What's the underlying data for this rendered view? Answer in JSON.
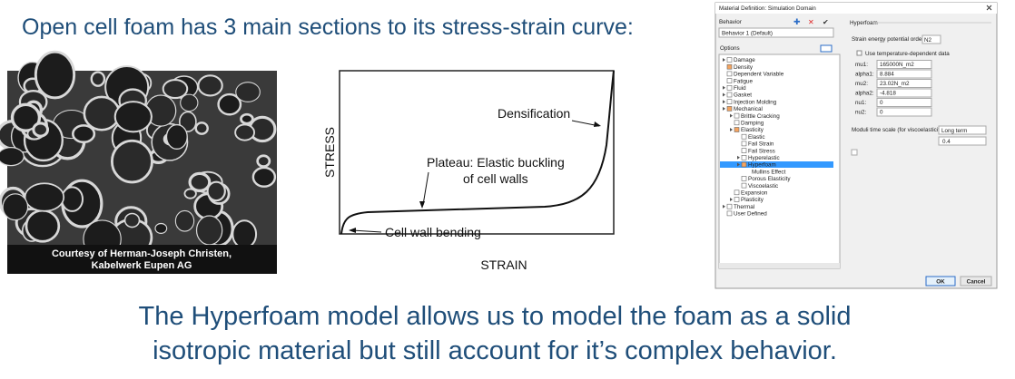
{
  "header": {
    "title": "Open cell foam has 3 main sections to its stress-strain curve:"
  },
  "photo": {
    "caption": [
      "Courtesy of Herman-Joseph Christen,",
      "Kabelwerk Eupen AG"
    ]
  },
  "diagram": {
    "y_label": "STRESS",
    "x_label": "STRAIN",
    "annotations": [
      "Densification",
      "Plateau: Elastic buckling",
      "of cell walls",
      "Cell wall bending"
    ]
  },
  "dialog": {
    "title": "Material Definition: Simulation Domain",
    "behavior_label": "Behavior",
    "behavior_value": "Behavior 1 (Default)",
    "options_label": "Options",
    "tree": [
      "Damage",
      "Density",
      "Dependent Variable",
      "Fatigue",
      "Fluid",
      "Gasket",
      "Injection Molding",
      "Mechanical",
      "Brittle Cracking",
      "Damping",
      "Elasticity",
      "Elastic",
      "Fail Strain",
      "Fail Stress",
      "Hyperelastic",
      "Hyperfoam",
      "Mullins Effect",
      "Porous Elasticity",
      "Viscoelastic",
      "Expansion",
      "Plasticity",
      "Thermal",
      "User Defined"
    ],
    "group": "Hyperfoam",
    "order_label": "Strain energy potential order:",
    "order_value": "N2",
    "temp_label": "Use temperature-dependent data",
    "fields": [
      {
        "label": "mu1:",
        "value": "165000N_m2"
      },
      {
        "label": "alpha1:",
        "value": "8.884"
      },
      {
        "label": "mu2:",
        "value": "23.02N_m2"
      },
      {
        "label": "alpha2:",
        "value": "-4.818"
      },
      {
        "label": "nu1:",
        "value": "0"
      },
      {
        "label": "nu2:",
        "value": "0"
      }
    ],
    "moduli_label": "Moduli time scale (for viscoelasticity):",
    "moduli_value": "Long term",
    "moduli_field": "0.4",
    "ok": "OK",
    "cancel": "Cancel"
  },
  "footer": {
    "lines": [
      "The Hyperfoam model allows us to model the foam as a solid",
      "isotropic material but still account for it’s complex behavior."
    ]
  }
}
